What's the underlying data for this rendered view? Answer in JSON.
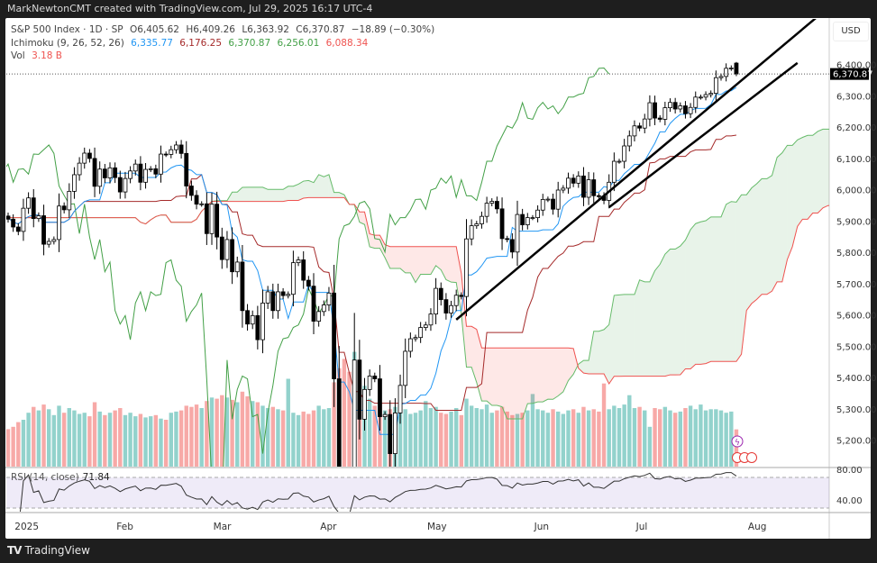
{
  "header": {
    "attribution": "MarkNewtonCMT created with TradingView.com, Jul 29, 2025 16:17 UTC-4"
  },
  "legend": {
    "symbol": "S&P 500 Index · 1D · SP",
    "open": "O6,405.62",
    "high": "H6,409.26",
    "low": "L6,363.92",
    "close": "C6,370.87",
    "change": "−18.89 (−0.30%)",
    "ichimoku_label": "Ichimoku (9, 26, 52, 26)",
    "ichimoku_values": [
      "6,335.77",
      "6,176.25",
      "6,370.87",
      "6,256.01",
      "6,088.34"
    ],
    "vol_label": "Vol",
    "vol_value": "3.18 B"
  },
  "currency": "USD",
  "last_price_label": "6,370.87",
  "rsi": {
    "label": "RSI (14, close)",
    "value": "71.84"
  },
  "footer": {
    "brand": "TradingView"
  },
  "colors": {
    "up_volume": "#f7a9a7",
    "down_volume": "#92d2cc",
    "tenkan": "#2196f3",
    "kijun": "#a52a2a",
    "chikou": "#43a047",
    "span_a": "#66bb6a",
    "span_b": "#ef5350",
    "rsi": "#333333"
  },
  "chart_data": {
    "type": "candlestick",
    "price_axis": {
      "ticks": [
        "6,400.00",
        "6,300.00",
        "6,200.00",
        "6,100.00",
        "6,000.00",
        "5,900.00",
        "5,800.00",
        "5,700.00",
        "5,600.00",
        "5,500.00",
        "5,400.00",
        "5,300.00",
        "5,200.00"
      ],
      "range": [
        5200,
        6400
      ]
    },
    "rsi_axis": {
      "ticks": [
        "80.00",
        "40.00"
      ],
      "bands": [
        30,
        70
      ]
    },
    "time_axis": [
      {
        "label": "2025",
        "date": "2025-01-02"
      },
      {
        "label": "Feb",
        "date": "2025-02-03"
      },
      {
        "label": "Mar",
        "date": "2025-03-03"
      },
      {
        "label": "Apr",
        "date": "2025-04-01"
      },
      {
        "label": "May",
        "date": "2025-05-01"
      },
      {
        "label": "Jun",
        "date": "2025-06-02"
      },
      {
        "label": "Jul",
        "date": "2025-07-01"
      },
      {
        "label": "Aug",
        "date": "2025-08-01"
      }
    ],
    "dates": [
      "2024-12-30",
      "2024-12-31",
      "2025-01-02",
      "2025-01-03",
      "2025-01-06",
      "2025-01-07",
      "2025-01-08",
      "2025-01-10",
      "2025-01-13",
      "2025-01-14",
      "2025-01-15",
      "2025-01-16",
      "2025-01-17",
      "2025-01-21",
      "2025-01-22",
      "2025-01-23",
      "2025-01-24",
      "2025-01-27",
      "2025-01-28",
      "2025-01-29",
      "2025-01-30",
      "2025-01-31",
      "2025-02-03",
      "2025-02-04",
      "2025-02-05",
      "2025-02-06",
      "2025-02-07",
      "2025-02-10",
      "2025-02-11",
      "2025-02-12",
      "2025-02-13",
      "2025-02-14",
      "2025-02-18",
      "2025-02-19",
      "2025-02-20",
      "2025-02-21",
      "2025-02-24",
      "2025-02-25",
      "2025-02-26",
      "2025-02-27",
      "2025-02-28",
      "2025-03-03",
      "2025-03-04",
      "2025-03-05",
      "2025-03-06",
      "2025-03-07",
      "2025-03-10",
      "2025-03-11",
      "2025-03-12",
      "2025-03-13",
      "2025-03-14",
      "2025-03-17",
      "2025-03-18",
      "2025-03-19",
      "2025-03-20",
      "2025-03-21",
      "2025-03-24",
      "2025-03-25",
      "2025-03-26",
      "2025-03-27",
      "2025-03-28",
      "2025-03-31",
      "2025-04-01",
      "2025-04-02",
      "2025-04-03",
      "2025-04-04",
      "2025-04-07",
      "2025-04-08",
      "2025-04-09",
      "2025-04-10",
      "2025-04-11",
      "2025-04-14",
      "2025-04-15",
      "2025-04-16",
      "2025-04-17",
      "2025-04-21",
      "2025-04-22",
      "2025-04-23",
      "2025-04-24",
      "2025-04-25",
      "2025-04-28",
      "2025-04-29",
      "2025-04-30",
      "2025-05-01",
      "2025-05-02",
      "2025-05-05",
      "2025-05-06",
      "2025-05-07",
      "2025-05-08",
      "2025-05-09",
      "2025-05-12",
      "2025-05-13",
      "2025-05-14",
      "2025-05-15",
      "2025-05-16",
      "2025-05-19",
      "2025-05-20",
      "2025-05-21",
      "2025-05-22",
      "2025-05-23",
      "2025-05-27",
      "2025-05-28",
      "2025-05-29",
      "2025-05-30",
      "2025-06-02",
      "2025-06-03",
      "2025-06-04",
      "2025-06-05",
      "2025-06-06",
      "2025-06-09",
      "2025-06-10",
      "2025-06-11",
      "2025-06-12",
      "2025-06-13",
      "2025-06-16",
      "2025-06-17",
      "2025-06-18",
      "2025-06-20",
      "2025-06-23",
      "2025-06-24",
      "2025-06-25",
      "2025-06-26",
      "2025-06-27",
      "2025-06-30",
      "2025-07-01",
      "2025-07-02",
      "2025-07-03",
      "2025-07-07",
      "2025-07-08",
      "2025-07-09",
      "2025-07-10",
      "2025-07-11",
      "2025-07-14",
      "2025-07-15",
      "2025-07-16",
      "2025-07-17",
      "2025-07-18",
      "2025-07-21",
      "2025-07-22",
      "2025-07-23",
      "2025-07-24",
      "2025-07-25",
      "2025-07-28",
      "2025-07-29"
    ],
    "close": [
      5907,
      5882,
      5868,
      5942,
      5975,
      5909,
      5918,
      5827,
      5836,
      5842,
      5949,
      5937,
      5996,
      6049,
      6086,
      6118,
      6101,
      6012,
      6067,
      6039,
      6071,
      6040,
      5994,
      6037,
      6061,
      6083,
      6025,
      6066,
      6068,
      6051,
      6115,
      6114,
      6129,
      6144,
      6117,
      6013,
      5983,
      5955,
      5956,
      5861,
      5955,
      5850,
      5778,
      5842,
      5739,
      5770,
      5615,
      5572,
      5599,
      5522,
      5639,
      5675,
      5615,
      5675,
      5663,
      5667,
      5768,
      5777,
      5712,
      5693,
      5581,
      5612,
      5633,
      5671,
      5397,
      5074,
      5062,
      4982,
      5457,
      5268,
      5363,
      5406,
      5397,
      5276,
      5283,
      5158,
      5288,
      5376,
      5485,
      5525,
      5529,
      5561,
      5569,
      5604,
      5686,
      5650,
      5607,
      5631,
      5664,
      5660,
      5844,
      5886,
      5892,
      5916,
      5958,
      5964,
      5940,
      5845,
      5842,
      5802,
      5922,
      5889,
      5912,
      5912,
      5936,
      5970,
      5971,
      5939,
      6000,
      6006,
      6038,
      6022,
      6045,
      5977,
      6033,
      5982,
      5981,
      5967,
      6025,
      6092,
      6092,
      6141,
      6173,
      6205,
      6198,
      6227,
      6279,
      6230,
      6226,
      6263,
      6280,
      6259,
      6269,
      6244,
      6264,
      6297,
      6297,
      6305,
      6309,
      6359,
      6363,
      6389,
      6390,
      6370.87
    ],
    "volume_b": [
      3.2,
      3.4,
      3.8,
      4.0,
      4.6,
      5.1,
      4.8,
      5.3,
      4.9,
      4.4,
      5.2,
      4.6,
      5.0,
      4.8,
      4.5,
      4.6,
      4.3,
      5.5,
      4.7,
      4.4,
      4.6,
      4.8,
      5.0,
      4.4,
      4.6,
      4.3,
      4.5,
      4.2,
      4.3,
      4.4,
      4.1,
      4.0,
      4.6,
      4.7,
      4.8,
      5.2,
      5.1,
      5.3,
      5.0,
      5.6,
      5.9,
      5.8,
      6.1,
      5.9,
      5.7,
      5.5,
      6.4,
      6.0,
      5.6,
      5.5,
      5.2,
      5.0,
      5.1,
      4.9,
      4.8,
      7.5,
      4.6,
      4.4,
      4.7,
      4.5,
      4.8,
      5.2,
      4.9,
      5.0,
      7.2,
      8.4,
      9.2,
      8.1,
      9.8,
      7.6,
      6.9,
      5.8,
      5.2,
      5.4,
      4.8,
      4.9,
      5.1,
      5.3,
      4.9,
      4.5,
      4.6,
      4.8,
      5.6,
      5.0,
      5.1,
      4.6,
      4.5,
      4.7,
      5.0,
      4.4,
      5.8,
      5.2,
      5.0,
      4.9,
      5.3,
      4.6,
      4.8,
      5.1,
      4.7,
      4.4,
      4.5,
      4.6,
      4.8,
      6.2,
      4.9,
      4.8,
      4.6,
      4.9,
      4.7,
      4.5,
      4.8,
      4.9,
      4.6,
      5.1,
      4.8,
      4.9,
      4.7,
      7.1,
      4.9,
      5.2,
      5.0,
      5.3,
      6.1,
      5.0,
      5.1,
      4.8,
      3.4,
      5.0,
      4.9,
      5.1,
      4.8,
      4.6,
      4.7,
      5.0,
      5.2,
      4.9,
      5.3,
      4.8,
      4.9,
      4.9,
      4.8,
      4.6,
      4.7,
      3.18
    ],
    "last_bar": {
      "open": 6405.62,
      "high": 6409.26,
      "low": 6363.92,
      "close": 6370.87
    },
    "trendlines": [
      {
        "from": {
          "date": "2025-05-08",
          "price": 5586
        },
        "to": {
          "date": "2025-08-20",
          "price": 6555
        }
      },
      {
        "from": {
          "date": "2025-06-23",
          "price": 5945
        },
        "to": {
          "date": "2025-08-14",
          "price": 6406
        }
      }
    ],
    "indicators": [
      "Ichimoku (9, 26, 52, 26)",
      "Volume",
      "RSI (14, close)"
    ]
  }
}
